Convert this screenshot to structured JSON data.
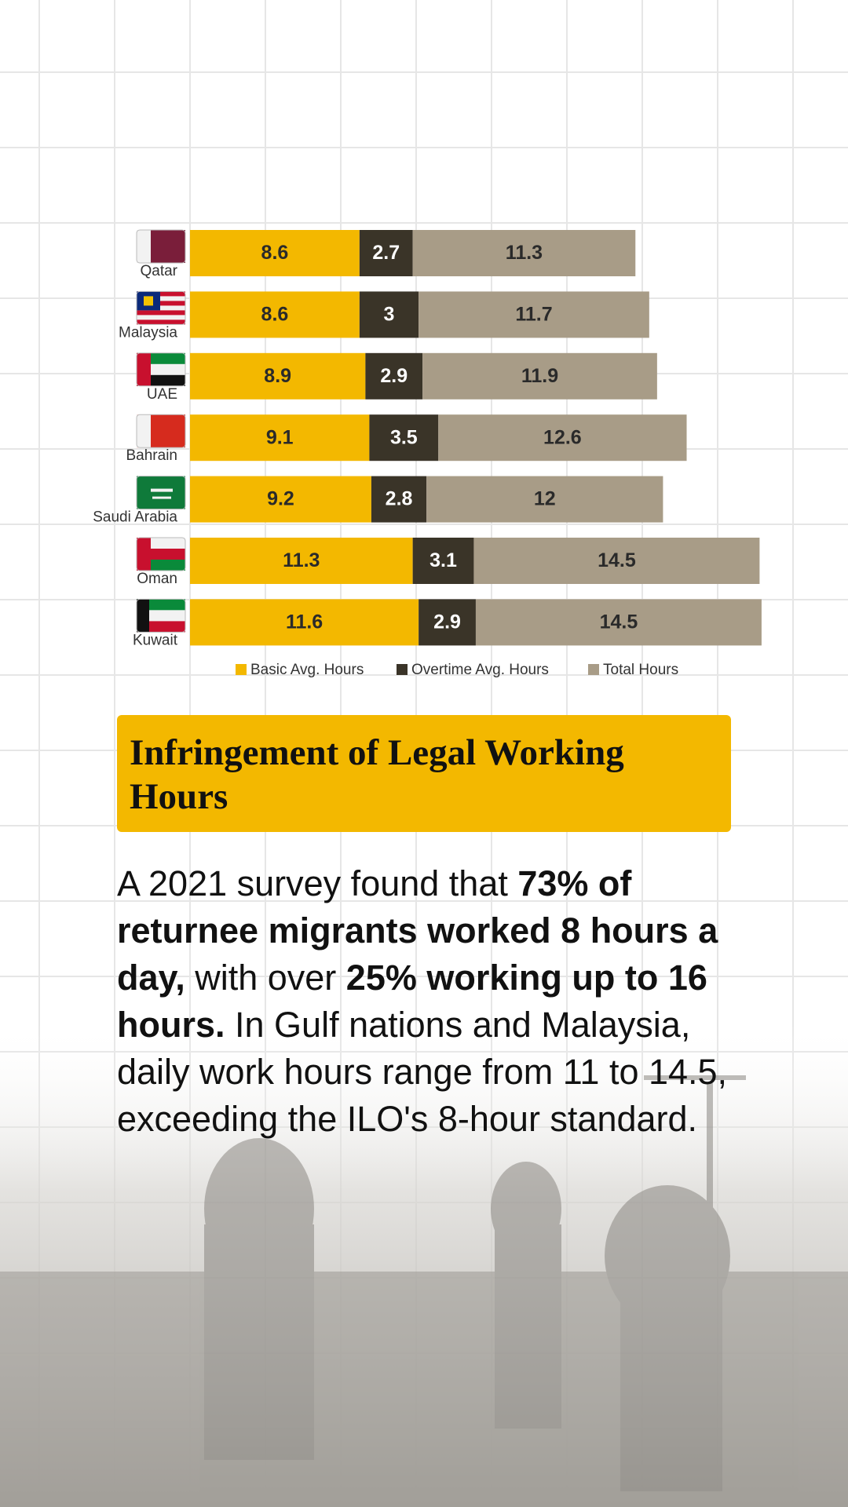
{
  "chart_data": {
    "type": "bar",
    "orientation": "horizontal",
    "stacked": true,
    "categories": [
      "Qatar",
      "Malaysia",
      "UAE",
      "Bahrain",
      "Saudi Arabia",
      "Oman",
      "Kuwait"
    ],
    "series": [
      {
        "name": "Basic Avg. Hours",
        "color": "#f3b800",
        "values": [
          8.6,
          8.6,
          8.9,
          9.1,
          9.2,
          11.3,
          11.6
        ]
      },
      {
        "name": "Overtime Avg. Hours",
        "color": "#3a3428",
        "values": [
          2.7,
          3,
          2.9,
          3.5,
          2.8,
          3.1,
          2.9
        ]
      },
      {
        "name": "Total Hours",
        "color": "#a89c87",
        "values": [
          11.3,
          11.7,
          11.9,
          12.6,
          12,
          14.5,
          14.5
        ]
      }
    ],
    "legend": "bottom"
  },
  "header": {
    "title": "Infringement of Legal Working Hours"
  },
  "body": [
    {
      "text": "A 2021 survey found that ",
      "bold": false
    },
    {
      "text": "73% of returnee migrants worked 8 hours a day,",
      "bold": true
    },
    {
      "text": " with over ",
      "bold": false
    },
    {
      "text": "25% working up to 16 hours.",
      "bold": true
    },
    {
      "text": " In Gulf nations and Malaysia, daily work hours range from 11 to 14.5, exceeding the ILO's 8-hour standard.",
      "bold": false
    }
  ]
}
